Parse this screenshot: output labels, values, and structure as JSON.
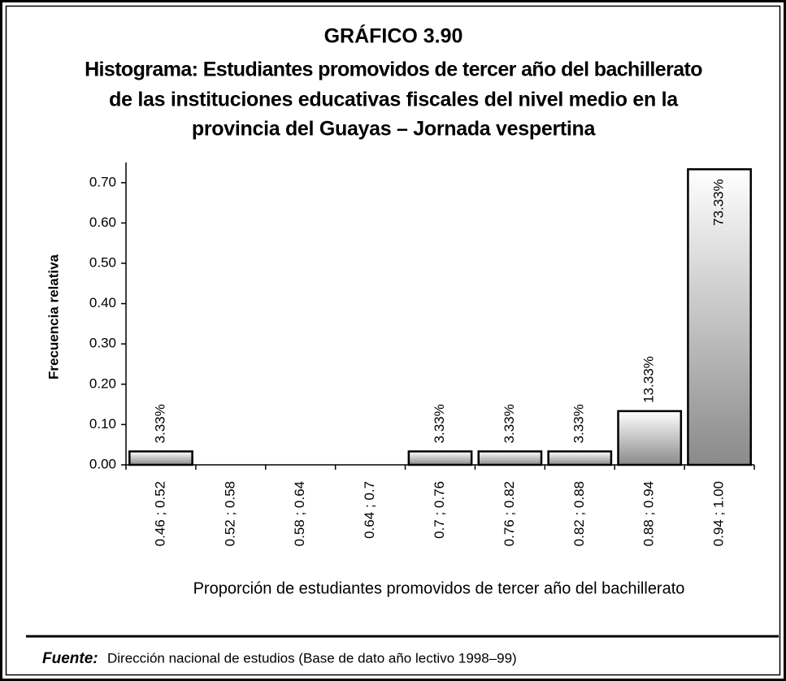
{
  "chart_data": {
    "type": "histogram",
    "title": "GRÁFICO 3.90",
    "subtitle": [
      "Histograma: Estudiantes promovidos de tercer año del bachillerato",
      "de  las instituciones educativas fiscales del nivel medio en la",
      "provincia del Guayas – Jornada vespertina"
    ],
    "categories": [
      "0.46 ; 0.52",
      "0.52 ; 0.58",
      "0.58 ; 0.64",
      "0.64 ; 0.7",
      "0.7 ; 0.76",
      "0.76 ; 0.82",
      "0.82 ; 0.88",
      "0.88 ; 0.94",
      "0.94 ; 1.00"
    ],
    "values": [
      0.0333,
      0,
      0,
      0,
      0.0333,
      0.0333,
      0.0333,
      0.1333,
      0.7333
    ],
    "value_labels": [
      "3.33%",
      null,
      null,
      null,
      "3.33%",
      "3.33%",
      "3.33%",
      "13.33%",
      "73.33%"
    ],
    "ylim": [
      0,
      0.75
    ],
    "yticks": [
      {
        "value": 0,
        "label": "0.00"
      },
      {
        "value": 0.1,
        "label": "0.10"
      },
      {
        "value": 0.2,
        "label": "0.20"
      },
      {
        "value": 0.3,
        "label": "0.30"
      },
      {
        "value": 0.4,
        "label": "0.40"
      },
      {
        "value": 0.5,
        "label": "0.50"
      },
      {
        "value": 0.6,
        "label": "0.60"
      },
      {
        "value": 0.7,
        "label": "0.70"
      }
    ],
    "ylabel": "Frecuencia  relativa",
    "xlabel": "Proporción de estudiantes promovidos de tercer año del bachillerato",
    "source_label": "Fuente:",
    "source": "Dirección nacional de estudios (Base de dato año lectivo 1998–99)"
  }
}
